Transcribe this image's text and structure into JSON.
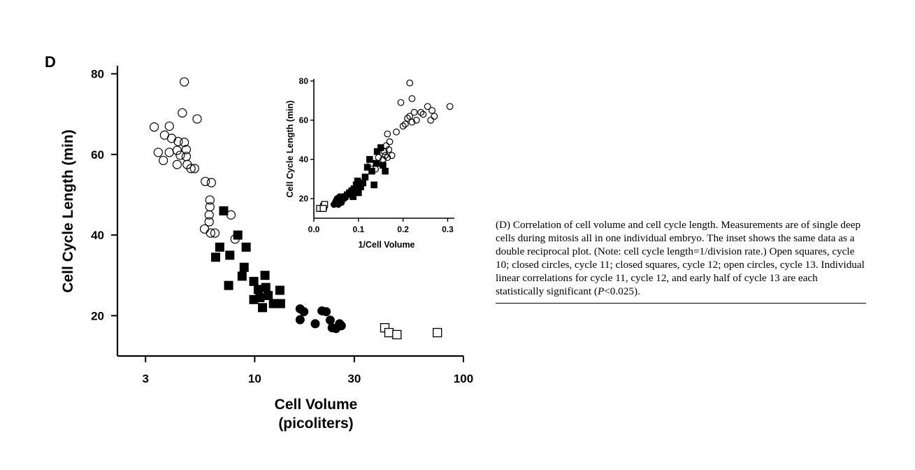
{
  "panel_label": "D",
  "caption": {
    "text_before_p": "(D) Correlation of cell volume and cell cycle length. Measurements are of single deep cells during mitosis all in one individual embryo. The inset shows the same data as a double reciprocal plot. (Note: cell cycle length=1/division rate.) Open squares, cycle 10; closed circles, cycle 11; closed squares, cycle 12; open circles, cycle 13. Individual linear correlations for cycle 11, cycle 12, and early half of cycle 13 are each statistically significant (",
    "p_symbol": "P",
    "text_after_p": "<0.025)."
  },
  "colors": {
    "ink": "#000000",
    "background": "#ffffff"
  },
  "chart_data": [
    {
      "id": "main",
      "type": "scatter",
      "xlabel_line1": "Cell Volume",
      "xlabel_line2": "(picoliters)",
      "ylabel": "Cell Cycle Length (min)",
      "x_scale": "log",
      "xlim": [
        2.2,
        100
      ],
      "ylim": [
        10,
        82
      ],
      "x_ticks": [
        3,
        10,
        30,
        100
      ],
      "x_tick_labels": [
        "3",
        "10",
        "30",
        "100"
      ],
      "y_ticks": [
        20,
        40,
        60,
        80
      ],
      "y_tick_labels": [
        "20",
        "40",
        "60",
        "80"
      ],
      "series": [
        {
          "marker": "open-square",
          "cycle": 10,
          "points": [
            [
              42,
              17
            ],
            [
              44,
              15.8
            ],
            [
              48,
              15.3
            ],
            [
              75,
              15.8
            ]
          ]
        },
        {
          "marker": "closed-circle",
          "cycle": 11,
          "points": [
            [
              16.5,
              21.7
            ],
            [
              17.2,
              21
            ],
            [
              16.5,
              19
            ],
            [
              19.5,
              18
            ],
            [
              21,
              21.2
            ],
            [
              22,
              21
            ],
            [
              23,
              18.9
            ],
            [
              23.5,
              17
            ],
            [
              24.5,
              16.8
            ],
            [
              25.5,
              18
            ],
            [
              26,
              17.5
            ]
          ]
        },
        {
          "marker": "closed-square",
          "cycle": 12,
          "points": [
            [
              7.1,
              46
            ],
            [
              6.8,
              37
            ],
            [
              6.5,
              34.5
            ],
            [
              7.6,
              35
            ],
            [
              7.5,
              27.5
            ],
            [
              8.3,
              40
            ],
            [
              9.1,
              37
            ],
            [
              8.9,
              32
            ],
            [
              8.7,
              29.8
            ],
            [
              9.9,
              28.5
            ],
            [
              10.4,
              26.5
            ],
            [
              9.9,
              24
            ],
            [
              10.6,
              24.5
            ],
            [
              10.9,
              22
            ],
            [
              11.2,
              30
            ],
            [
              11.3,
              27
            ],
            [
              11.6,
              25
            ],
            [
              12.3,
              23
            ],
            [
              13.2,
              26.3
            ],
            [
              13.3,
              23
            ]
          ]
        },
        {
          "marker": "open-circle",
          "cycle": 13,
          "points": [
            [
              4.6,
              78
            ],
            [
              4.5,
              70.3
            ],
            [
              5.3,
              68.8
            ],
            [
              3.3,
              66.8
            ],
            [
              3.9,
              67
            ],
            [
              3.7,
              64.8
            ],
            [
              4.0,
              64
            ],
            [
              4.3,
              63.2
            ],
            [
              4.6,
              63
            ],
            [
              4.7,
              61.2
            ],
            [
              3.45,
              60.5
            ],
            [
              3.9,
              60.5
            ],
            [
              4.25,
              61
            ],
            [
              4.4,
              59.8
            ],
            [
              4.7,
              59.5
            ],
            [
              3.65,
              58.5
            ],
            [
              4.25,
              57.5
            ],
            [
              4.75,
              57.5
            ],
            [
              4.95,
              56.5
            ],
            [
              5.15,
              56.5
            ],
            [
              5.8,
              53.3
            ],
            [
              6.2,
              53
            ],
            [
              6.1,
              48.7
            ],
            [
              6.1,
              47
            ],
            [
              6.05,
              45
            ],
            [
              7.7,
              45
            ],
            [
              6.05,
              43.3
            ],
            [
              5.75,
              41.5
            ],
            [
              6.15,
              40.5
            ],
            [
              6.45,
              40.5
            ],
            [
              8.05,
              39
            ]
          ]
        }
      ]
    },
    {
      "id": "inset",
      "type": "scatter",
      "xlabel": "1/Cell Volume",
      "ylabel": "Cell Cycle Length (min)",
      "xlim": [
        0,
        0.315
      ],
      "ylim": [
        10,
        81
      ],
      "x_ticks": [
        0.0,
        0.1,
        0.2,
        0.3
      ],
      "x_tick_labels": [
        "0.0",
        "0.1",
        "0.2",
        "0.3"
      ],
      "y_ticks": [
        20,
        40,
        60,
        80
      ],
      "y_tick_labels": [
        "20",
        "40",
        "60",
        "80"
      ],
      "series": [
        {
          "marker": "open-square",
          "cycle": 10,
          "points": [
            [
              0.013,
              15
            ],
            [
              0.022,
              16
            ],
            [
              0.024,
              17
            ],
            [
              0.021,
              15
            ]
          ]
        },
        {
          "marker": "closed-circle",
          "cycle": 11,
          "points": [
            [
              0.045,
              17
            ],
            [
              0.048,
              18
            ],
            [
              0.05,
              19
            ],
            [
              0.052,
              20
            ],
            [
              0.055,
              17
            ],
            [
              0.058,
              21
            ],
            [
              0.06,
              19
            ],
            [
              0.062,
              18
            ],
            [
              0.061,
              20
            ],
            [
              0.066,
              21
            ],
            [
              0.068,
              20
            ]
          ]
        },
        {
          "marker": "closed-square",
          "cycle": 12,
          "points": [
            [
              0.07,
              21
            ],
            [
              0.075,
              22
            ],
            [
              0.08,
              23
            ],
            [
              0.085,
              24
            ],
            [
              0.088,
              21
            ],
            [
              0.09,
              25
            ],
            [
              0.095,
              27
            ],
            [
              0.1,
              23
            ],
            [
              0.098,
              29
            ],
            [
              0.105,
              26
            ],
            [
              0.11,
              28
            ],
            [
              0.115,
              31
            ],
            [
              0.12,
              36
            ],
            [
              0.125,
              40
            ],
            [
              0.13,
              34
            ],
            [
              0.135,
              27
            ],
            [
              0.14,
              38
            ],
            [
              0.142,
              44
            ],
            [
              0.15,
              46
            ],
            [
              0.155,
              37
            ],
            [
              0.16,
              34
            ]
          ]
        },
        {
          "marker": "open-circle",
          "cycle": 13,
          "points": [
            [
              0.128,
              38
            ],
            [
              0.138,
              35
            ],
            [
              0.145,
              41
            ],
            [
              0.155,
              40
            ],
            [
              0.158,
              44
            ],
            [
              0.16,
              42
            ],
            [
              0.162,
              47
            ],
            [
              0.165,
              41
            ],
            [
              0.168,
              45
            ],
            [
              0.165,
              53
            ],
            [
              0.17,
              49
            ],
            [
              0.175,
              42
            ],
            [
              0.185,
              54
            ],
            [
              0.2,
              57
            ],
            [
              0.205,
              58
            ],
            [
              0.195,
              69
            ],
            [
              0.21,
              61
            ],
            [
              0.215,
              62
            ],
            [
              0.22,
              59
            ],
            [
              0.215,
              79
            ],
            [
              0.22,
              71
            ],
            [
              0.225,
              64
            ],
            [
              0.23,
              60
            ],
            [
              0.24,
              64
            ],
            [
              0.245,
              63
            ],
            [
              0.255,
              67
            ],
            [
              0.262,
              60
            ],
            [
              0.265,
              65
            ],
            [
              0.27,
              62
            ],
            [
              0.305,
              67
            ]
          ]
        }
      ]
    }
  ]
}
